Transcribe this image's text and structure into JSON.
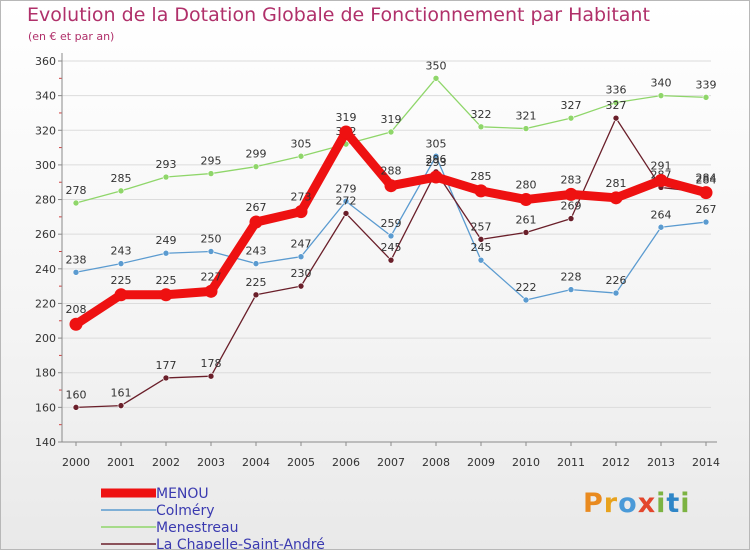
{
  "title": "Evolution de la Dotation Globale de Fonctionnement par Habitant",
  "subtitle": "(en € et par an)",
  "logo_text": "Proxiti",
  "colors": {
    "title": "#b0306a",
    "axis": "#8a8a8a",
    "grid": "#dcdcdc",
    "tick": "#333333",
    "legend_text": "#3a3ab0"
  },
  "chart_data": {
    "type": "line",
    "title": "Evolution de la Dotation Globale de Fonctionnement par Habitant",
    "subtitle": "(en € et par an)",
    "xlabel": "",
    "ylabel": "",
    "ylim": [
      140,
      360
    ],
    "yticks": [
      140,
      160,
      180,
      200,
      220,
      240,
      260,
      280,
      300,
      320,
      340,
      360
    ],
    "grid": "horizontal",
    "legend_position": "bottom-left",
    "x": [
      "2000",
      "2001",
      "2002",
      "2003",
      "2004",
      "2005",
      "2006",
      "2007",
      "2008",
      "2009",
      "2010",
      "2011",
      "2012",
      "2013",
      "2014"
    ],
    "series": [
      {
        "name": "Menestreau",
        "color": "#8fd66a",
        "values": [
          278,
          285,
          293,
          295,
          299,
          305,
          312,
          319,
          350,
          322,
          321,
          327,
          336,
          340,
          339
        ]
      },
      {
        "name": "Colméry",
        "color": "#5b9bd0",
        "values": [
          238,
          243,
          249,
          250,
          243,
          247,
          279,
          259,
          305,
          245,
          222,
          228,
          226,
          264,
          267
        ]
      },
      {
        "name": "La Chapelle-Saint-André",
        "color": "#6a1f2a",
        "values": [
          160,
          161,
          177,
          178,
          225,
          230,
          272,
          245,
          296,
          257,
          261,
          269,
          327,
          287,
          284
        ]
      },
      {
        "name": "MENOU",
        "color": "#ee1111",
        "values": [
          208,
          225,
          225,
          227,
          267,
          273,
          319,
          288,
          293,
          285,
          280,
          283,
          281,
          291,
          284
        ]
      }
    ],
    "legend_order": [
      "MENOU",
      "Colméry",
      "Menestreau",
      "La Chapelle-Saint-André"
    ]
  },
  "legend": [
    {
      "label": "MENOU",
      "color": "#ee1111"
    },
    {
      "label": "Colméry",
      "color": "#5b9bd0"
    },
    {
      "label": "Menestreau",
      "color": "#8fd66a"
    },
    {
      "label": "La Chapelle-Saint-André",
      "color": "#6a1f2a"
    }
  ]
}
